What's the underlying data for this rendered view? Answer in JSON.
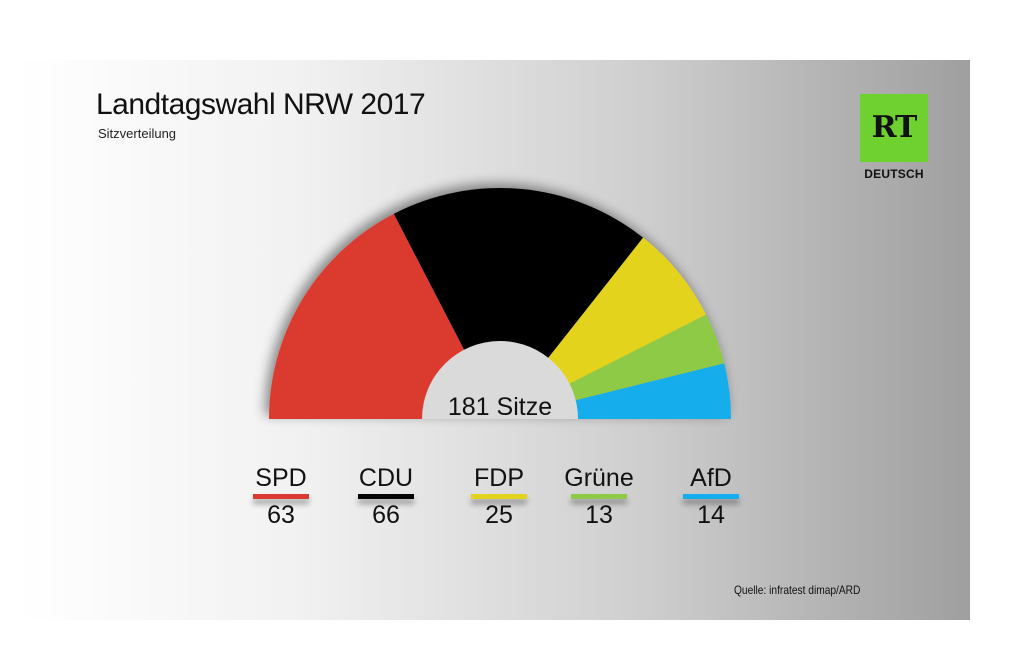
{
  "header": {
    "title": "Landtagswahl NRW 2017",
    "subtitle": "Sitzverteilung"
  },
  "logo": {
    "mark": "RT",
    "label": "DEUTSCH",
    "color": "#6fd12f"
  },
  "chart_data": {
    "type": "pie",
    "variant": "semicircle-parliament",
    "title": "Landtagswahl NRW 2017",
    "subtitle": "Sitzverteilung",
    "total": 181,
    "center_label": "181 Sitze",
    "categories": [
      "SPD",
      "CDU",
      "FDP",
      "Grüne",
      "AfD"
    ],
    "values": [
      63,
      66,
      25,
      13,
      14
    ],
    "colors": [
      "#da3a2f",
      "#050505",
      "#e3d31f",
      "#8fca47",
      "#14aded"
    ],
    "legend_placement": "bottom"
  },
  "footer": {
    "source": "Quelle: infratest dimap/ARD"
  }
}
